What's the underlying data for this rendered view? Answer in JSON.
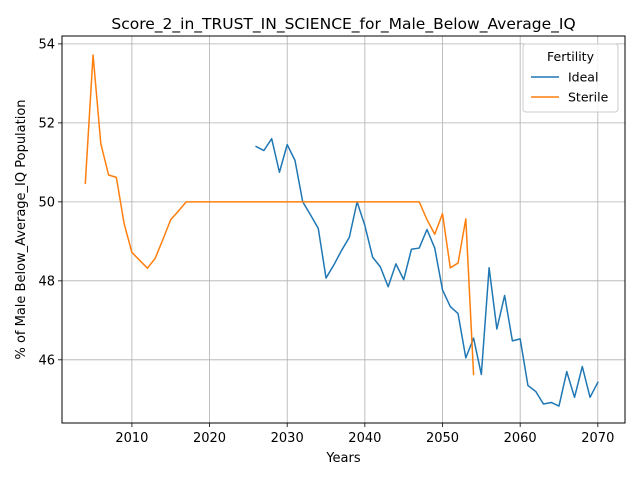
{
  "chart_data": {
    "type": "line",
    "title": "Score_2_in_TRUST_IN_SCIENCE_for_Male_Below_Average_IQ",
    "xlabel": "Years",
    "ylabel": "% of Male Below_Average_IQ Population",
    "xlim": [
      2001,
      2073.5
    ],
    "ylim": [
      44.4,
      54.2
    ],
    "xticks": [
      2010,
      2020,
      2030,
      2040,
      2050,
      2060,
      2070
    ],
    "yticks": [
      46,
      48,
      50,
      52,
      54
    ],
    "grid": true,
    "legend": {
      "title": "Fertility",
      "placement": "top-right"
    },
    "series": [
      {
        "name": "Ideal",
        "color": "#1f77b4",
        "x": [
          2026,
          2027,
          2028,
          2029,
          2030,
          2031,
          2032,
          2033,
          2034,
          2035,
          2036,
          2037,
          2038,
          2039,
          2040,
          2041,
          2042,
          2043,
          2044,
          2045,
          2046,
          2047,
          2048,
          2049,
          2050,
          2051,
          2052,
          2053,
          2054,
          2055,
          2056,
          2057,
          2058,
          2059,
          2060,
          2061,
          2062,
          2063,
          2064,
          2065,
          2066,
          2067,
          2068,
          2069,
          2070
        ],
        "y": [
          51.4,
          51.3,
          51.6,
          50.75,
          51.45,
          51.05,
          50.0,
          49.67,
          49.33,
          48.07,
          48.4,
          48.77,
          49.1,
          50.0,
          49.4,
          48.6,
          48.35,
          47.85,
          48.43,
          48.03,
          48.8,
          48.83,
          49.3,
          48.83,
          47.77,
          47.35,
          47.17,
          46.05,
          46.55,
          45.63,
          48.33,
          46.78,
          47.63,
          46.48,
          46.53,
          45.35,
          45.2,
          44.88,
          44.92,
          44.83,
          45.7,
          45.05,
          45.83,
          45.05,
          45.43
        ]
      },
      {
        "name": "Sterile",
        "color": "#ff7f0e",
        "x": [
          2004,
          2005,
          2006,
          2007,
          2008,
          2009,
          2010,
          2011,
          2012,
          2013,
          2014,
          2015,
          2016,
          2017,
          2018,
          2019,
          2020,
          2021,
          2022,
          2023,
          2024,
          2025,
          2026,
          2027,
          2028,
          2029,
          2030,
          2031,
          2032,
          2033,
          2034,
          2035,
          2036,
          2037,
          2038,
          2039,
          2040,
          2041,
          2042,
          2043,
          2044,
          2045,
          2046,
          2047,
          2048,
          2049,
          2050,
          2051,
          2052,
          2053,
          2054
        ],
        "y": [
          50.47,
          53.72,
          51.47,
          50.68,
          50.62,
          49.45,
          48.72,
          48.52,
          48.32,
          48.57,
          49.05,
          49.55,
          49.77,
          50.0,
          50.0,
          50.0,
          50.0,
          50.0,
          50.0,
          50.0,
          50.0,
          50.0,
          50.0,
          50.0,
          50.0,
          50.0,
          50.0,
          50.0,
          50.0,
          50.0,
          50.0,
          50.0,
          50.0,
          50.0,
          50.0,
          50.0,
          50.0,
          50.0,
          50.0,
          50.0,
          50.0,
          50.0,
          50.0,
          50.0,
          49.55,
          49.18,
          49.7,
          48.33,
          48.45,
          49.57,
          45.63
        ]
      }
    ]
  }
}
